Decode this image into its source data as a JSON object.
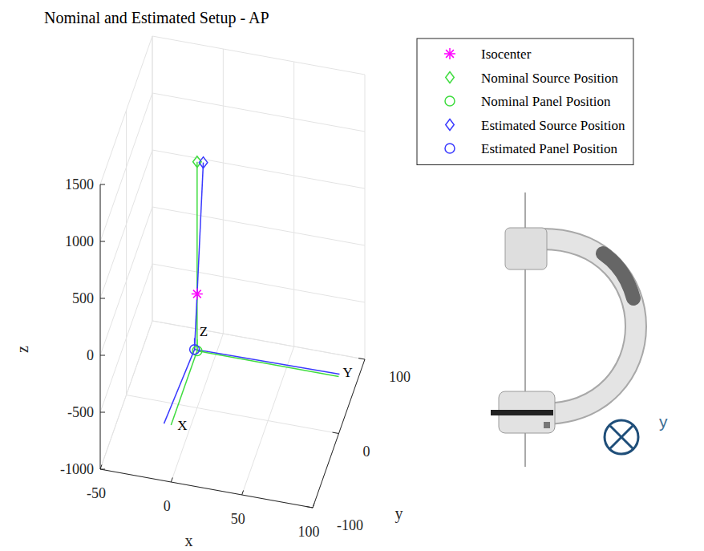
{
  "chart_data": {
    "type": "scatter3d",
    "title": "Nominal and Estimated Setup - AP",
    "x_label": "x",
    "y_label": "y",
    "z_label": "z",
    "xlim": [
      -50,
      100
    ],
    "ylim": [
      -100,
      100
    ],
    "zlim": [
      -1000,
      1500
    ],
    "xticks": [
      -50,
      0,
      50,
      100
    ],
    "yticks": [
      -100,
      0,
      100
    ],
    "zticks": [
      -1000,
      -500,
      0,
      500,
      1000,
      1500
    ],
    "grid": true,
    "legend": "top-right",
    "series": [
      {
        "name": "Isocenter",
        "color": "#ff00ff",
        "marker": "asterisk",
        "x": [
          0
        ],
        "y": [
          0
        ],
        "z": [
          0
        ]
      },
      {
        "name": "Nominal Source Position",
        "color": "#3fdc3f",
        "marker": "diamond",
        "x": [
          0
        ],
        "y": [
          0
        ],
        "z": [
          1160
        ]
      },
      {
        "name": "Nominal Panel Position",
        "color": "#3fdc3f",
        "marker": "circle",
        "x": [
          0
        ],
        "y": [
          0
        ],
        "z": [
          -500
        ]
      },
      {
        "name": "Estimated Source Position",
        "color": "#3a3aff",
        "marker": "diamond",
        "x": [
          4
        ],
        "y": [
          2
        ],
        "z": [
          1150
        ]
      },
      {
        "name": "Estimated Panel Position",
        "color": "#3a3aff",
        "marker": "circle",
        "x": [
          -2
        ],
        "y": [
          1
        ],
        "z": [
          -498
        ]
      }
    ],
    "lines": [
      {
        "color": "#3fdc3f",
        "x": [
          0,
          0
        ],
        "y": [
          0,
          0
        ],
        "z": [
          1160,
          -500
        ]
      },
      {
        "color": "#3a3aff",
        "x": [
          4,
          -2
        ],
        "y": [
          2,
          1
        ],
        "z": [
          1150,
          -498
        ]
      },
      {
        "color": "#3a3aff",
        "x": [
          -2,
          -5
        ],
        "y": [
          1,
          -100
        ],
        "z": [
          -498,
          -498
        ]
      },
      {
        "color": "#3a3aff",
        "x": [
          -2,
          100
        ],
        "y": [
          1,
          3
        ],
        "z": [
          -498,
          -498
        ]
      },
      {
        "color": "#3a3aff",
        "x": [
          -2,
          -2
        ],
        "y": [
          1,
          1
        ],
        "z": [
          -498,
          -398
        ]
      },
      {
        "color": "#3fdc3f",
        "x": [
          0,
          0
        ],
        "y": [
          0,
          -100
        ],
        "z": [
          -500,
          -500
        ],
        "label": "X"
      },
      {
        "color": "#3fdc3f",
        "x": [
          0,
          100
        ],
        "y": [
          0,
          0
        ],
        "z": [
          -500,
          -500
        ],
        "label": "Y"
      },
      {
        "color": "#3fdc3f",
        "x": [
          0,
          0
        ],
        "y": [
          0,
          0
        ],
        "z": [
          -500,
          -400
        ],
        "label": "Z"
      }
    ],
    "annotations": [
      "y"
    ]
  }
}
